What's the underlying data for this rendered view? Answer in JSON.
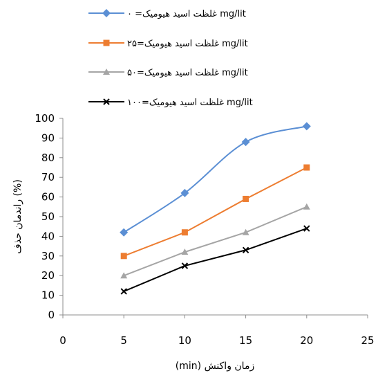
{
  "chart_data": {
    "type": "line",
    "title": "",
    "xlabel": "(min) زمان واکنش",
    "ylabel": "راندمان حذف (%)",
    "xlim": [
      0,
      25
    ],
    "ylim": [
      0,
      100
    ],
    "xticks": [
      0,
      5,
      10,
      15,
      20,
      25
    ],
    "yticks": [
      0,
      10,
      20,
      30,
      40,
      50,
      60,
      70,
      80,
      90,
      100
    ],
    "grid": false,
    "legend_position": "top",
    "x": [
      5,
      10,
      15,
      20
    ],
    "series": [
      {
        "name": "غلظت اسید هیومیک= ۰ mg/lit",
        "values": [
          42,
          62,
          88,
          96
        ],
        "color": "#5b8fd4",
        "marker": "diamond",
        "smooth": true
      },
      {
        "name": "غلظت اسید هیومیک=۲۵ mg/lit",
        "values": [
          30,
          42,
          59,
          75
        ],
        "color": "#ed7d31",
        "marker": "square",
        "smooth": false
      },
      {
        "name": "غلظت اسید هیومیک=۵۰ mg/lit",
        "values": [
          20,
          32,
          42,
          55
        ],
        "color": "#a5a5a5",
        "marker": "triangle",
        "smooth": false
      },
      {
        "name": "غلظت اسید هیومیک=۱۰۰ mg/lit",
        "values": [
          12,
          25,
          33,
          44
        ],
        "color": "#000000",
        "marker": "x",
        "smooth": false
      }
    ]
  }
}
